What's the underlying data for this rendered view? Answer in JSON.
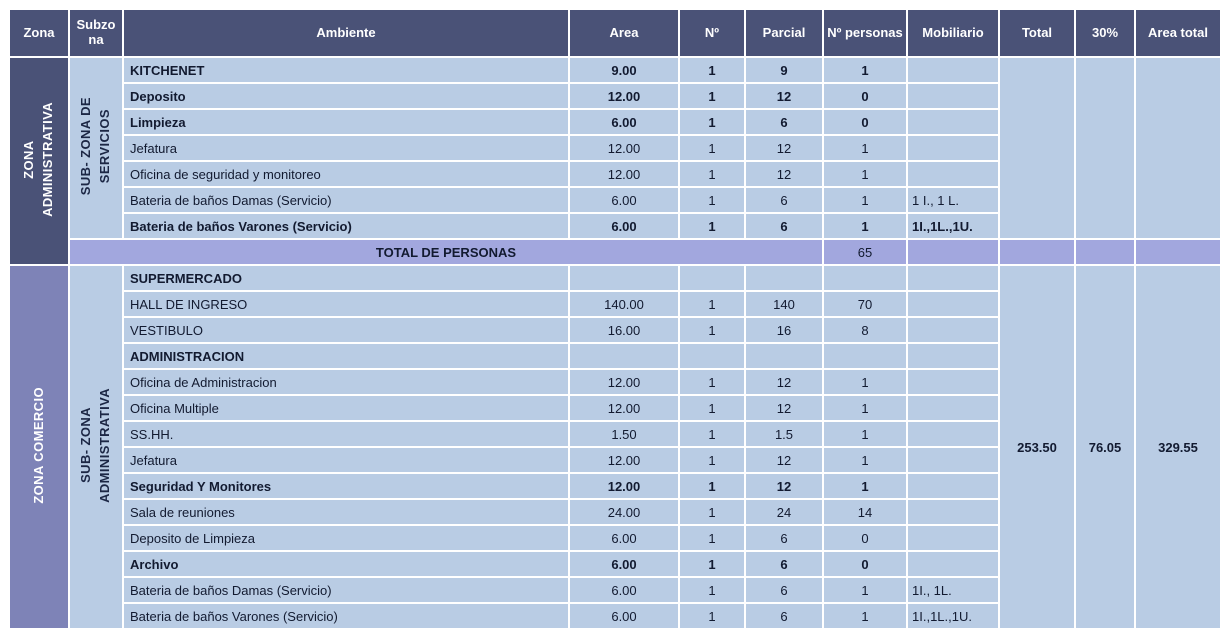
{
  "colors": {
    "header_bg": "#4a5277",
    "zone_administrativa_bg": "#4a5277",
    "zone_comercio_bg": "#7e83b7",
    "row_bg": "#b9cce4",
    "total_row_bg": "#a2a7de",
    "header_text": "#ffffff",
    "cell_text": "#121a30"
  },
  "table": {
    "headers": [
      "Zona",
      "Subzona",
      "Ambiente",
      "Area",
      "Nº",
      "Parcial",
      "Nº personas",
      "Mobiliario",
      "Total",
      "30%",
      "Area total"
    ],
    "zones": [
      {
        "zona": "ZONA\nADMINISTRATIVA",
        "zona_bg": "#4a5277",
        "subzona": "SUB- ZONA DE\nSERVICIOS",
        "rows": [
          {
            "ambiente": "KITCHENET",
            "bold": true,
            "area": "9.00",
            "num": "1",
            "parcial": "9",
            "personas": "1",
            "mobiliario": ""
          },
          {
            "ambiente": "Deposito",
            "bold": true,
            "area": "12.00",
            "num": "1",
            "parcial": "12",
            "personas": "0",
            "mobiliario": ""
          },
          {
            "ambiente": "Limpieza",
            "bold": true,
            "area": "6.00",
            "num": "1",
            "parcial": "6",
            "personas": "0",
            "mobiliario": ""
          },
          {
            "ambiente": "Jefatura",
            "bold": false,
            "area": "12.00",
            "num": "1",
            "parcial": "12",
            "personas": "1",
            "mobiliario": ""
          },
          {
            "ambiente": "Oficina de seguridad y monitoreo",
            "bold": false,
            "area": "12.00",
            "num": "1",
            "parcial": "12",
            "personas": "1",
            "mobiliario": ""
          },
          {
            "ambiente": "Bateria de baños Damas (Servicio)",
            "bold": false,
            "area": "6.00",
            "num": "1",
            "parcial": "6",
            "personas": "1",
            "mobiliario": "1 I., 1 L."
          },
          {
            "ambiente": "Bateria de baños Varones (Servicio)",
            "bold": true,
            "area": "6.00",
            "num": "1",
            "parcial": "6",
            "personas": "1",
            "mobiliario": "1I.,1L.,1U."
          }
        ],
        "totals": {
          "total": "",
          "pct": "",
          "area_total": ""
        },
        "total_row": {
          "label": "TOTAL DE PERSONAS",
          "personas": "65"
        }
      },
      {
        "zona": "ZONA COMERCIO",
        "zona_bg": "#7e83b7",
        "subzona": "SUB- ZONA\nADMINISTRATIVA",
        "rows": [
          {
            "ambiente": "SUPERMERCADO",
            "bold": true,
            "area": "",
            "num": "",
            "parcial": "",
            "personas": "",
            "mobiliario": ""
          },
          {
            "ambiente": "HALL DE INGRESO",
            "bold": false,
            "area": "140.00",
            "num": "1",
            "parcial": "140",
            "personas": "70",
            "mobiliario": ""
          },
          {
            "ambiente": "VESTIBULO",
            "bold": false,
            "area": "16.00",
            "num": "1",
            "parcial": "16",
            "personas": "8",
            "mobiliario": ""
          },
          {
            "ambiente": "ADMINISTRACION",
            "bold": true,
            "area": "",
            "num": "",
            "parcial": "",
            "personas": "",
            "mobiliario": ""
          },
          {
            "ambiente": "Oficina de Administracion",
            "bold": false,
            "area": "12.00",
            "num": "1",
            "parcial": "12",
            "personas": "1",
            "mobiliario": ""
          },
          {
            "ambiente": "Oficina Multiple",
            "bold": false,
            "area": "12.00",
            "num": "1",
            "parcial": "12",
            "personas": "1",
            "mobiliario": ""
          },
          {
            "ambiente": "SS.HH.",
            "bold": false,
            "area": "1.50",
            "num": "1",
            "parcial": "1.5",
            "personas": "1",
            "mobiliario": ""
          },
          {
            "ambiente": "Jefatura",
            "bold": false,
            "area": "12.00",
            "num": "1",
            "parcial": "12",
            "personas": "1",
            "mobiliario": ""
          },
          {
            "ambiente": "Seguridad Y Monitores",
            "bold": true,
            "area": "12.00",
            "num": "1",
            "parcial": "12",
            "personas": "1",
            "mobiliario": ""
          },
          {
            "ambiente": "Sala de reuniones",
            "bold": false,
            "area": "24.00",
            "num": "1",
            "parcial": "24",
            "personas": "14",
            "mobiliario": ""
          },
          {
            "ambiente": "Deposito de Limpieza",
            "bold": false,
            "area": "6.00",
            "num": "1",
            "parcial": "6",
            "personas": "0",
            "mobiliario": ""
          },
          {
            "ambiente": "Archivo",
            "bold": true,
            "area": "6.00",
            "num": "1",
            "parcial": "6",
            "personas": "0",
            "mobiliario": ""
          },
          {
            "ambiente": "Bateria de baños Damas (Servicio)",
            "bold": false,
            "area": "6.00",
            "num": "1",
            "parcial": "6",
            "personas": "1",
            "mobiliario": "1I., 1L."
          },
          {
            "ambiente": "Bateria de baños Varones (Servicio)",
            "bold": false,
            "area": "6.00",
            "num": "1",
            "parcial": "6",
            "personas": "1",
            "mobiliario": "1I.,1L.,1U."
          }
        ],
        "totals": {
          "total": "253.50",
          "pct": "76.05",
          "area_total": "329.55"
        }
      }
    ]
  }
}
